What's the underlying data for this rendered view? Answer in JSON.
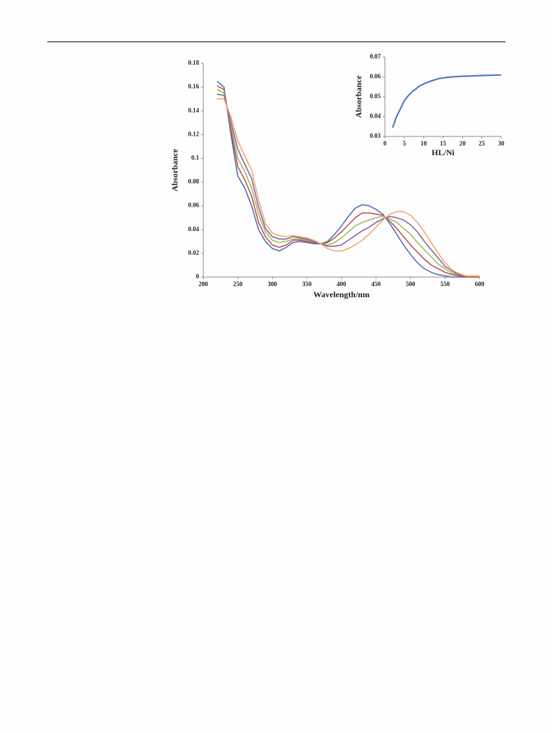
{
  "chart_data": [
    {
      "type": "line",
      "xlabel": "Wavelength/nm",
      "ylabel": "Absorbance",
      "xlim": [
        200,
        600
      ],
      "xticks": [
        200,
        250,
        300,
        350,
        400,
        450,
        500,
        550,
        600
      ],
      "ylim": [
        0,
        0.18
      ],
      "yticks": [
        0,
        0.02,
        0.04,
        0.06,
        0.08,
        0.1,
        0.12,
        0.14,
        0.16,
        0.18
      ],
      "x": [
        220,
        230,
        240,
        250,
        260,
        270,
        280,
        290,
        300,
        310,
        320,
        330,
        340,
        350,
        360,
        370,
        380,
        390,
        400,
        410,
        420,
        430,
        440,
        450,
        460,
        470,
        480,
        490,
        500,
        510,
        520,
        530,
        540,
        550,
        560,
        570,
        580,
        590,
        600
      ],
      "series": [
        {
          "color": "#4a6fb5",
          "values": [
            0.165,
            0.16,
            0.12,
            0.085,
            0.075,
            0.06,
            0.04,
            0.03,
            0.024,
            0.022,
            0.025,
            0.029,
            0.03,
            0.029,
            0.028,
            0.028,
            0.03,
            0.036,
            0.043,
            0.051,
            0.058,
            0.061,
            0.06,
            0.057,
            0.053,
            0.045,
            0.036,
            0.027,
            0.019,
            0.012,
            0.007,
            0.004,
            0.002,
            0.001,
            0,
            0,
            0,
            0,
            0
          ]
        },
        {
          "color": "#c0504d",
          "values": [
            0.161,
            0.158,
            0.124,
            0.093,
            0.082,
            0.068,
            0.046,
            0.034,
            0.027,
            0.025,
            0.027,
            0.031,
            0.031,
            0.03,
            0.029,
            0.028,
            0.029,
            0.033,
            0.038,
            0.044,
            0.05,
            0.054,
            0.054,
            0.053,
            0.052,
            0.047,
            0.041,
            0.034,
            0.027,
            0.021,
            0.015,
            0.01,
            0.007,
            0.004,
            0.002,
            0.001,
            0,
            0,
            0
          ]
        },
        {
          "color": "#9bbb59",
          "values": [
            0.158,
            0.155,
            0.128,
            0.1,
            0.089,
            0.075,
            0.053,
            0.038,
            0.031,
            0.029,
            0.03,
            0.032,
            0.032,
            0.031,
            0.03,
            0.028,
            0.027,
            0.029,
            0.033,
            0.038,
            0.043,
            0.046,
            0.048,
            0.05,
            0.051,
            0.049,
            0.046,
            0.041,
            0.036,
            0.029,
            0.023,
            0.017,
            0.011,
            0.007,
            0.003,
            0.002,
            0.001,
            0.001,
            0.001
          ]
        },
        {
          "color": "#8064a2",
          "values": [
            0.154,
            0.153,
            0.131,
            0.108,
            0.095,
            0.083,
            0.059,
            0.041,
            0.034,
            0.032,
            0.032,
            0.034,
            0.033,
            0.032,
            0.03,
            0.028,
            0.026,
            0.026,
            0.027,
            0.031,
            0.035,
            0.039,
            0.042,
            0.046,
            0.049,
            0.051,
            0.05,
            0.048,
            0.044,
            0.038,
            0.03,
            0.023,
            0.016,
            0.009,
            0.005,
            0.002,
            0.001,
            0.001,
            0.001
          ]
        },
        {
          "color": "#f7a46a",
          "values": [
            0.15,
            0.15,
            0.135,
            0.115,
            0.102,
            0.09,
            0.065,
            0.045,
            0.037,
            0.035,
            0.034,
            0.035,
            0.034,
            0.033,
            0.031,
            0.028,
            0.024,
            0.022,
            0.022,
            0.024,
            0.027,
            0.031,
            0.036,
            0.042,
            0.048,
            0.053,
            0.055,
            0.055,
            0.052,
            0.046,
            0.038,
            0.029,
            0.02,
            0.012,
            0.006,
            0.003,
            0.001,
            0.001,
            0.001
          ]
        }
      ]
    },
    {
      "type": "line",
      "xlabel": "HL/Ni",
      "ylabel": "Absorbance",
      "xlim": [
        0,
        30
      ],
      "xticks": [
        0,
        5,
        10,
        15,
        20,
        25,
        30
      ],
      "ylim": [
        0.03,
        0.07
      ],
      "yticks": [
        0.03,
        0.04,
        0.05,
        0.06,
        0.07
      ],
      "x": [
        2,
        3,
        4,
        5,
        6,
        7,
        8,
        9,
        10,
        12,
        14,
        16,
        18,
        20,
        25,
        30
      ],
      "series": [
        {
          "color": "#4a7ec0",
          "values": [
            0.0345,
            0.04,
            0.044,
            0.048,
            0.0505,
            0.0525,
            0.054,
            0.0555,
            0.0565,
            0.058,
            0.0592,
            0.0598,
            0.0601,
            0.0603,
            0.0607,
            0.061
          ]
        }
      ]
    }
  ]
}
